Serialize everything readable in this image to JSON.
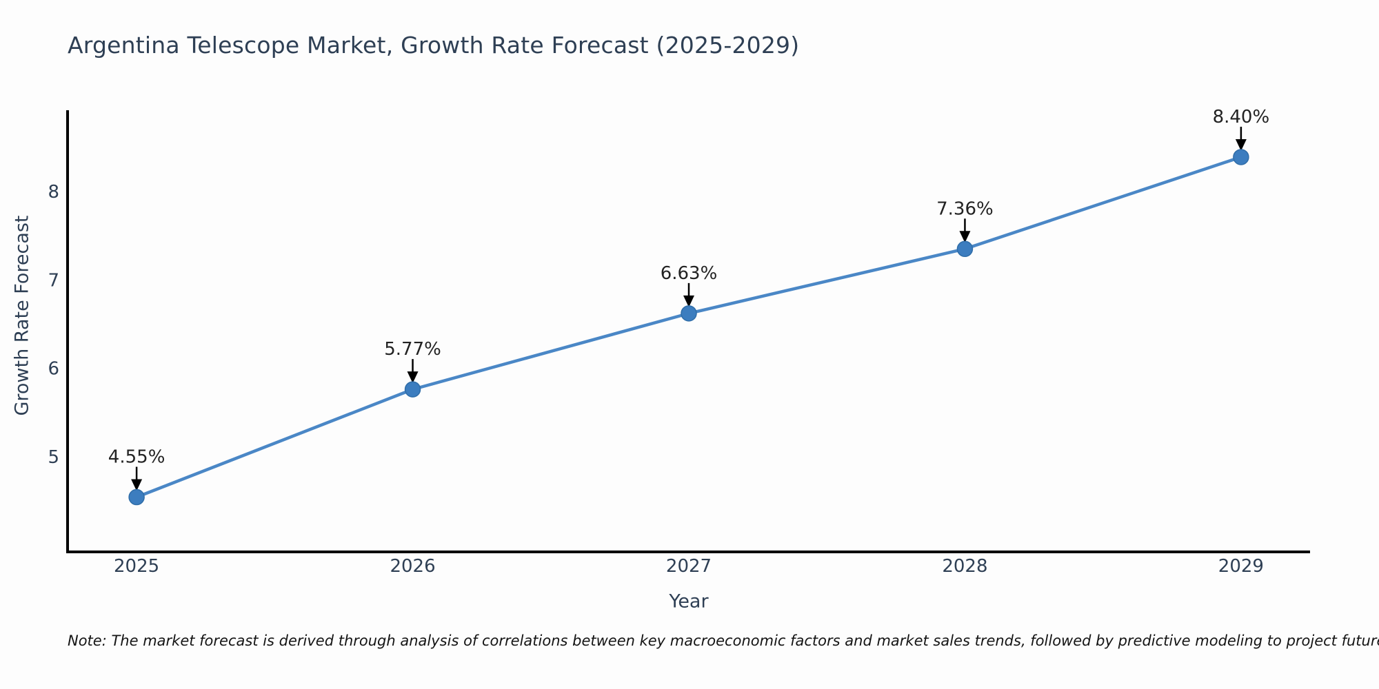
{
  "chart_data": {
    "type": "line",
    "title": "Argentina Telescope Market, Growth Rate Forecast (2025-2029)",
    "xlabel": "Year",
    "ylabel": "Growth Rate Forecast",
    "x": [
      2025,
      2026,
      2027,
      2028,
      2029
    ],
    "series": [
      {
        "name": "Growth Rate Forecast",
        "values": [
          4.55,
          5.77,
          6.63,
          7.36,
          8.4
        ],
        "point_labels": [
          "4.55%",
          "5.77%",
          "6.63%",
          "7.36%",
          "8.40%"
        ]
      }
    ],
    "x_tick_labels": [
      "2025",
      "2026",
      "2027",
      "2028",
      "2029"
    ],
    "y_ticks": [
      5,
      6,
      7,
      8
    ],
    "xlim": [
      2024.75,
      2029.25
    ],
    "ylim": [
      3.93,
      8.93
    ],
    "grid": false,
    "legend": "none",
    "annotation_style": "label-with-down-arrow",
    "colors": {
      "line": "#4a87c6",
      "marker": "#3c7dbf",
      "marker_edge": "#2f6da8",
      "axis": "#000000",
      "text": "#2e3f54",
      "annotation": "#222222",
      "note": "#141414",
      "background": "#fdfdfd"
    }
  },
  "note": "Note: The market forecast is derived through analysis of correlations between key macroeconomic factors and market sales trends, followed by predictive modeling to project future sales."
}
